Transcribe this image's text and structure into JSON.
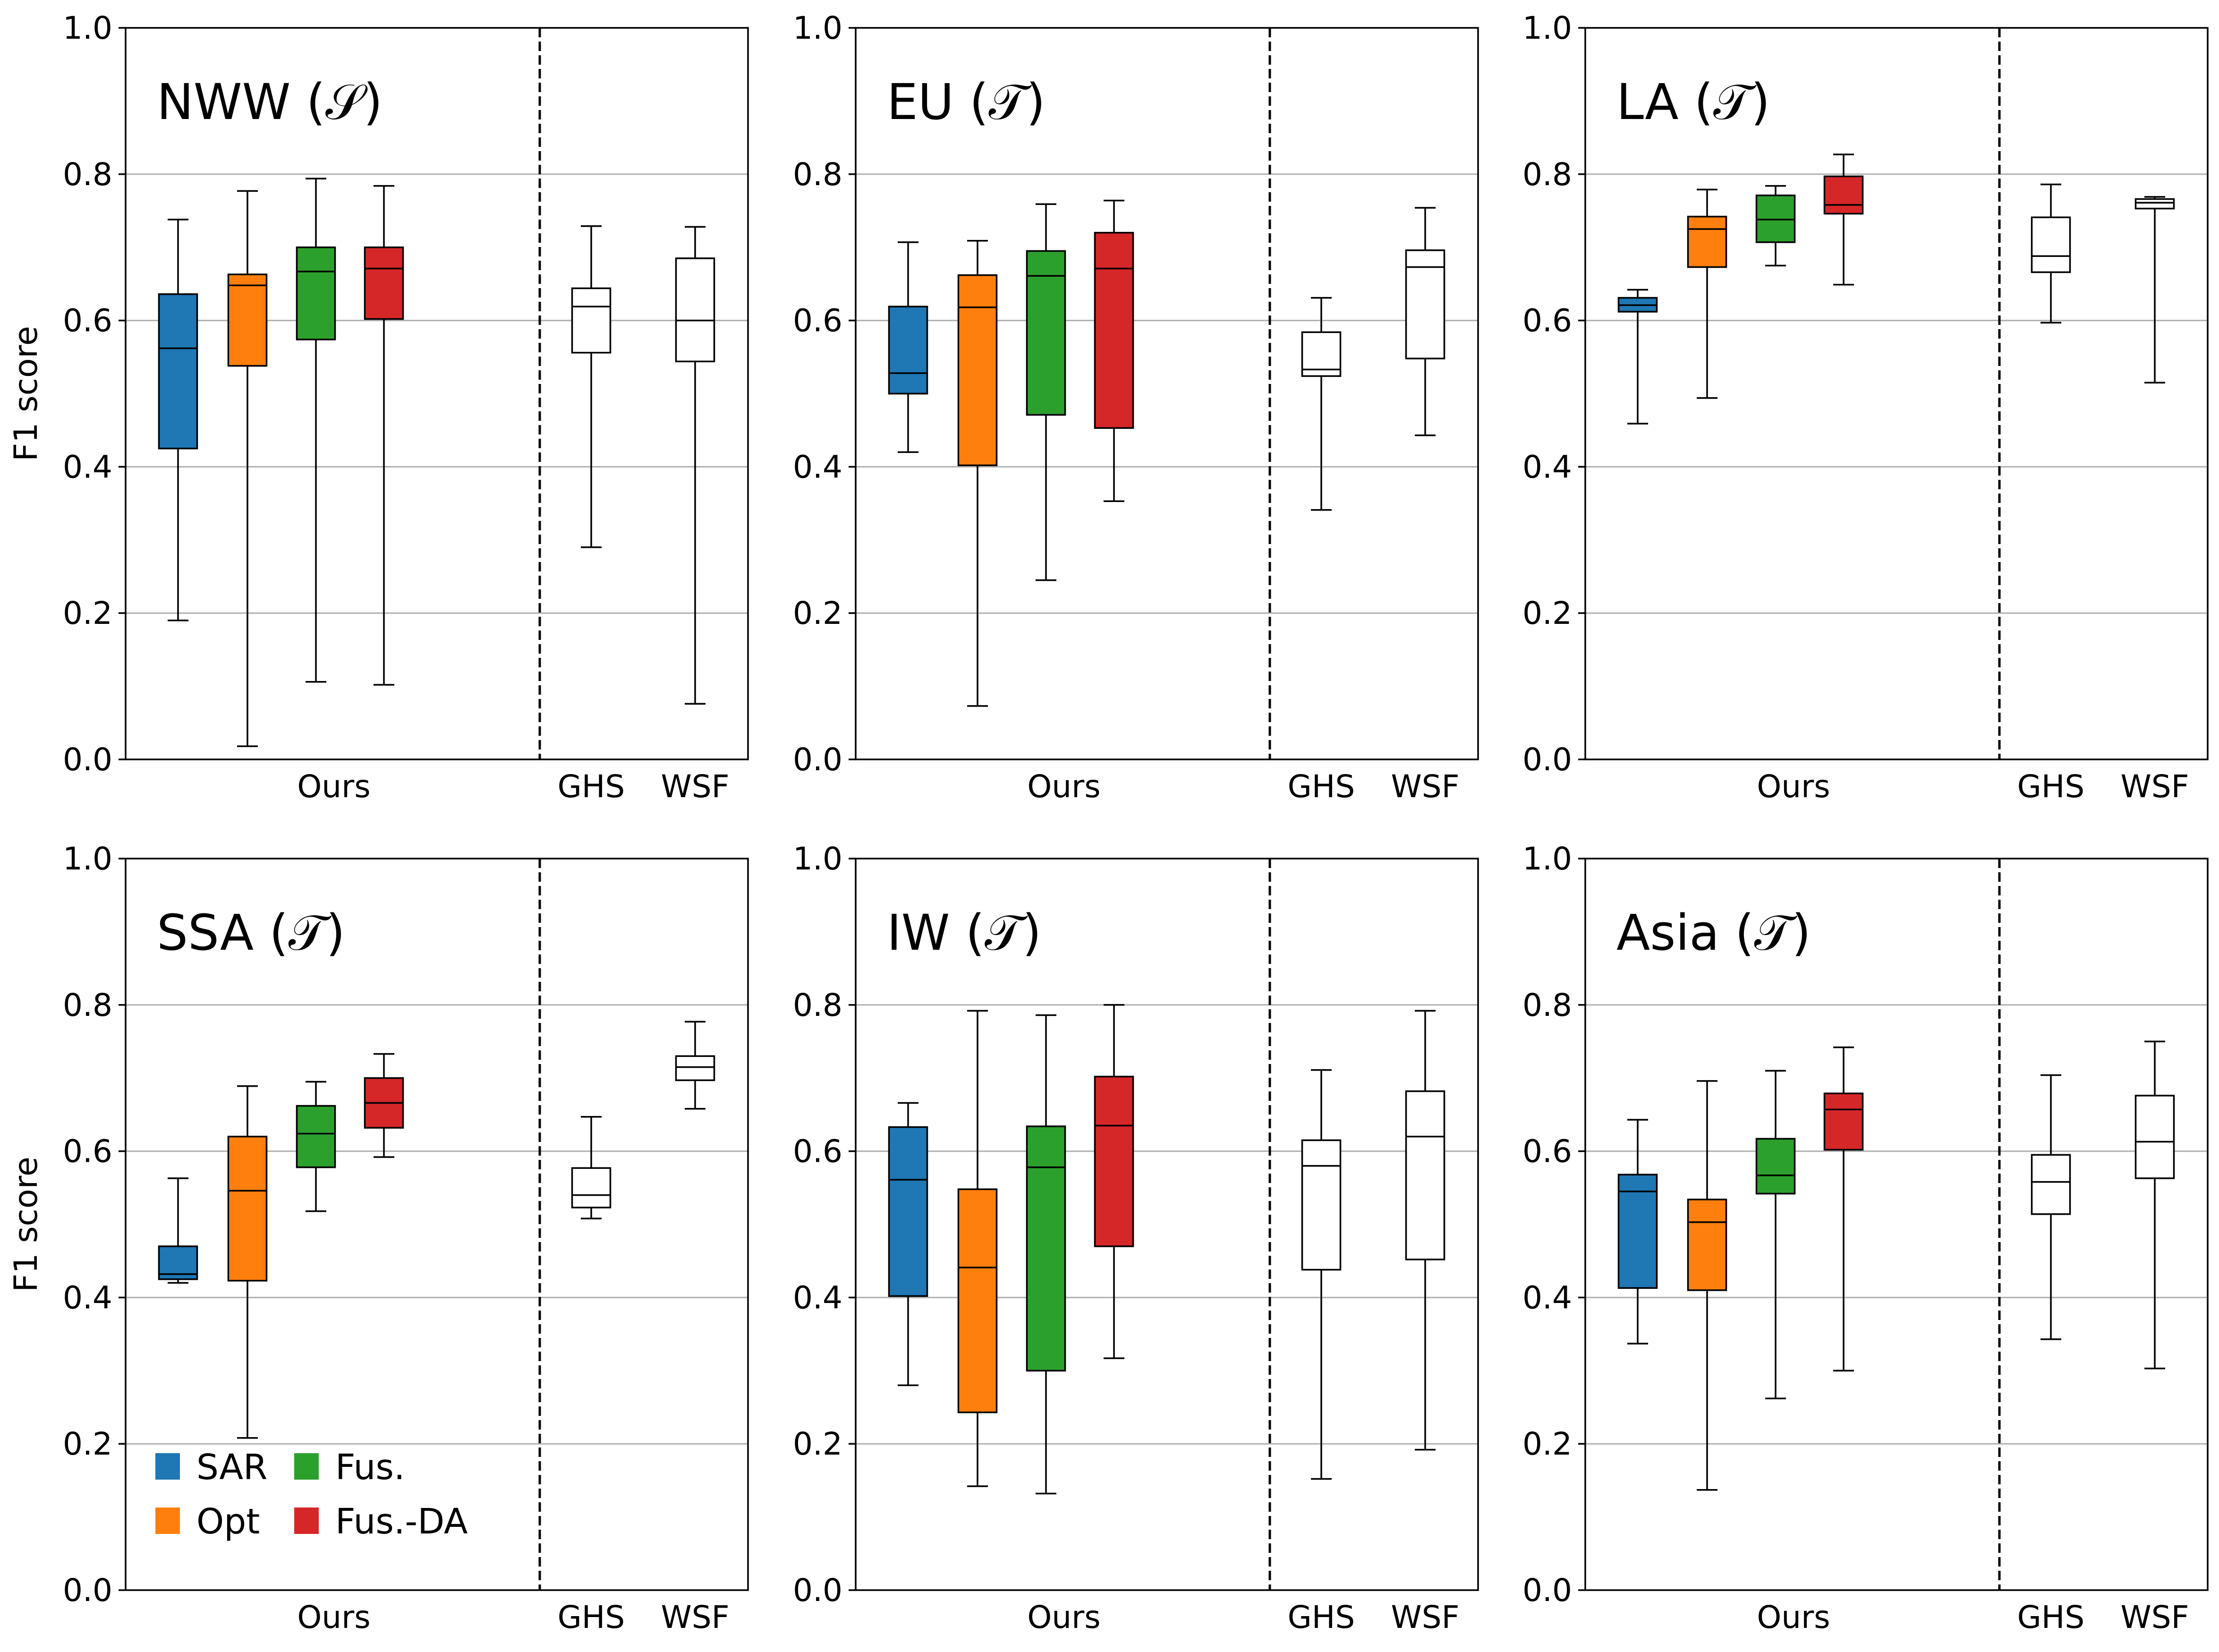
{
  "figure": {
    "ylabel": "F1 score",
    "group_labels": [
      "Ours",
      "GHS",
      "WSF"
    ],
    "y_ticks": [
      "0.0",
      "0.2",
      "0.4",
      "0.6",
      "0.8",
      "1.0"
    ],
    "legend": [
      {
        "name": "SAR",
        "color": "#1f77b4"
      },
      {
        "name": "Opt",
        "color": "#ff7f0e"
      },
      {
        "name": "Fus.",
        "color": "#2ca02c"
      },
      {
        "name": "Fus.-DA",
        "color": "#d62728"
      }
    ]
  },
  "chart_data": [
    {
      "type": "box",
      "title": "NWW (𝒮)",
      "ylim": [
        0,
        1
      ],
      "grid": "horizontal",
      "categories": [
        "SAR",
        "Opt",
        "Fus.",
        "Fus.-DA",
        "GHS",
        "WSF"
      ],
      "series": [
        {
          "name": "SAR",
          "whisker_low": 0.19,
          "q1": 0.425,
          "median": 0.562,
          "q3": 0.636,
          "whisker_high": 0.738
        },
        {
          "name": "Opt",
          "whisker_low": 0.018,
          "q1": 0.538,
          "median": 0.648,
          "q3": 0.663,
          "whisker_high": 0.777
        },
        {
          "name": "Fus.",
          "whisker_low": 0.106,
          "q1": 0.574,
          "median": 0.667,
          "q3": 0.7,
          "whisker_high": 0.794
        },
        {
          "name": "Fus.-DA",
          "whisker_low": 0.102,
          "q1": 0.602,
          "median": 0.671,
          "q3": 0.7,
          "whisker_high": 0.784
        },
        {
          "name": "GHS",
          "whisker_low": 0.29,
          "q1": 0.556,
          "median": 0.619,
          "q3": 0.644,
          "whisker_high": 0.729
        },
        {
          "name": "WSF",
          "whisker_low": 0.076,
          "q1": 0.544,
          "median": 0.6,
          "q3": 0.685,
          "whisker_high": 0.728
        }
      ]
    },
    {
      "type": "box",
      "title": "EU (𝒯)",
      "ylim": [
        0,
        1
      ],
      "grid": "horizontal",
      "categories": [
        "SAR",
        "Opt",
        "Fus.",
        "Fus.-DA",
        "GHS",
        "WSF"
      ],
      "series": [
        {
          "name": "SAR",
          "whisker_low": 0.42,
          "q1": 0.5,
          "median": 0.528,
          "q3": 0.619,
          "whisker_high": 0.707
        },
        {
          "name": "Opt",
          "whisker_low": 0.073,
          "q1": 0.402,
          "median": 0.618,
          "q3": 0.662,
          "whisker_high": 0.709
        },
        {
          "name": "Fus.",
          "whisker_low": 0.245,
          "q1": 0.471,
          "median": 0.661,
          "q3": 0.695,
          "whisker_high": 0.759
        },
        {
          "name": "Fus.-DA",
          "whisker_low": 0.353,
          "q1": 0.453,
          "median": 0.671,
          "q3": 0.72,
          "whisker_high": 0.764
        },
        {
          "name": "GHS",
          "whisker_low": 0.341,
          "q1": 0.524,
          "median": 0.533,
          "q3": 0.584,
          "whisker_high": 0.631
        },
        {
          "name": "WSF",
          "whisker_low": 0.443,
          "q1": 0.548,
          "median": 0.673,
          "q3": 0.696,
          "whisker_high": 0.754
        }
      ]
    },
    {
      "type": "box",
      "title": "LA (𝒯)",
      "ylim": [
        0,
        1
      ],
      "grid": "horizontal",
      "categories": [
        "SAR",
        "Opt",
        "Fus.",
        "Fus.-DA",
        "GHS",
        "WSF"
      ],
      "series": [
        {
          "name": "SAR",
          "whisker_low": 0.459,
          "q1": 0.612,
          "median": 0.621,
          "q3": 0.631,
          "whisker_high": 0.642
        },
        {
          "name": "Opt",
          "whisker_low": 0.494,
          "q1": 0.673,
          "median": 0.725,
          "q3": 0.742,
          "whisker_high": 0.779
        },
        {
          "name": "Fus.",
          "whisker_low": 0.675,
          "q1": 0.707,
          "median": 0.738,
          "q3": 0.771,
          "whisker_high": 0.784
        },
        {
          "name": "Fus.-DA",
          "whisker_low": 0.649,
          "q1": 0.746,
          "median": 0.758,
          "q3": 0.797,
          "whisker_high": 0.827
        },
        {
          "name": "GHS",
          "whisker_low": 0.597,
          "q1": 0.666,
          "median": 0.688,
          "q3": 0.741,
          "whisker_high": 0.786
        },
        {
          "name": "WSF",
          "whisker_low": 0.515,
          "q1": 0.753,
          "median": 0.761,
          "q3": 0.766,
          "whisker_high": 0.769
        }
      ]
    },
    {
      "type": "box",
      "title": "SSA (𝒯)",
      "ylim": [
        0,
        1
      ],
      "grid": "horizontal",
      "categories": [
        "SAR",
        "Opt",
        "Fus.",
        "Fus.-DA",
        "GHS",
        "WSF"
      ],
      "series": [
        {
          "name": "SAR",
          "whisker_low": 0.42,
          "q1": 0.425,
          "median": 0.432,
          "q3": 0.47,
          "whisker_high": 0.563
        },
        {
          "name": "Opt",
          "whisker_low": 0.208,
          "q1": 0.423,
          "median": 0.546,
          "q3": 0.62,
          "whisker_high": 0.689
        },
        {
          "name": "Fus.",
          "whisker_low": 0.518,
          "q1": 0.578,
          "median": 0.624,
          "q3": 0.662,
          "whisker_high": 0.695
        },
        {
          "name": "Fus.-DA",
          "whisker_low": 0.592,
          "q1": 0.632,
          "median": 0.666,
          "q3": 0.7,
          "whisker_high": 0.733
        },
        {
          "name": "GHS",
          "whisker_low": 0.508,
          "q1": 0.523,
          "median": 0.54,
          "q3": 0.577,
          "whisker_high": 0.647
        },
        {
          "name": "WSF",
          "whisker_low": 0.658,
          "q1": 0.697,
          "median": 0.715,
          "q3": 0.73,
          "whisker_high": 0.777
        }
      ]
    },
    {
      "type": "box",
      "title": "IW (𝒯)",
      "ylim": [
        0,
        1
      ],
      "grid": "horizontal",
      "categories": [
        "SAR",
        "Opt",
        "Fus.",
        "Fus.-DA",
        "GHS",
        "WSF"
      ],
      "series": [
        {
          "name": "SAR",
          "whisker_low": 0.28,
          "q1": 0.402,
          "median": 0.561,
          "q3": 0.633,
          "whisker_high": 0.666
        },
        {
          "name": "Opt",
          "whisker_low": 0.142,
          "q1": 0.243,
          "median": 0.441,
          "q3": 0.548,
          "whisker_high": 0.792
        },
        {
          "name": "Fus.",
          "whisker_low": 0.132,
          "q1": 0.3,
          "median": 0.578,
          "q3": 0.634,
          "whisker_high": 0.786
        },
        {
          "name": "Fus.-DA",
          "whisker_low": 0.317,
          "q1": 0.47,
          "median": 0.635,
          "q3": 0.702,
          "whisker_high": 0.8
        },
        {
          "name": "GHS",
          "whisker_low": 0.152,
          "q1": 0.438,
          "median": 0.58,
          "q3": 0.615,
          "whisker_high": 0.711
        },
        {
          "name": "WSF",
          "whisker_low": 0.192,
          "q1": 0.452,
          "median": 0.62,
          "q3": 0.682,
          "whisker_high": 0.792
        }
      ]
    },
    {
      "type": "box",
      "title": "Asia (𝒯)",
      "ylim": [
        0,
        1
      ],
      "grid": "horizontal",
      "categories": [
        "SAR",
        "Opt",
        "Fus.",
        "Fus.-DA",
        "GHS",
        "WSF"
      ],
      "series": [
        {
          "name": "SAR",
          "whisker_low": 0.337,
          "q1": 0.413,
          "median": 0.545,
          "q3": 0.568,
          "whisker_high": 0.643
        },
        {
          "name": "Opt",
          "whisker_low": 0.137,
          "q1": 0.41,
          "median": 0.503,
          "q3": 0.534,
          "whisker_high": 0.696
        },
        {
          "name": "Fus.",
          "whisker_low": 0.262,
          "q1": 0.542,
          "median": 0.567,
          "q3": 0.617,
          "whisker_high": 0.71
        },
        {
          "name": "Fus.-DA",
          "whisker_low": 0.3,
          "q1": 0.602,
          "median": 0.657,
          "q3": 0.679,
          "whisker_high": 0.742
        },
        {
          "name": "GHS",
          "whisker_low": 0.343,
          "q1": 0.514,
          "median": 0.558,
          "q3": 0.595,
          "whisker_high": 0.704
        },
        {
          "name": "WSF",
          "whisker_low": 0.303,
          "q1": 0.563,
          "median": 0.613,
          "q3": 0.676,
          "whisker_high": 0.75
        }
      ]
    }
  ]
}
